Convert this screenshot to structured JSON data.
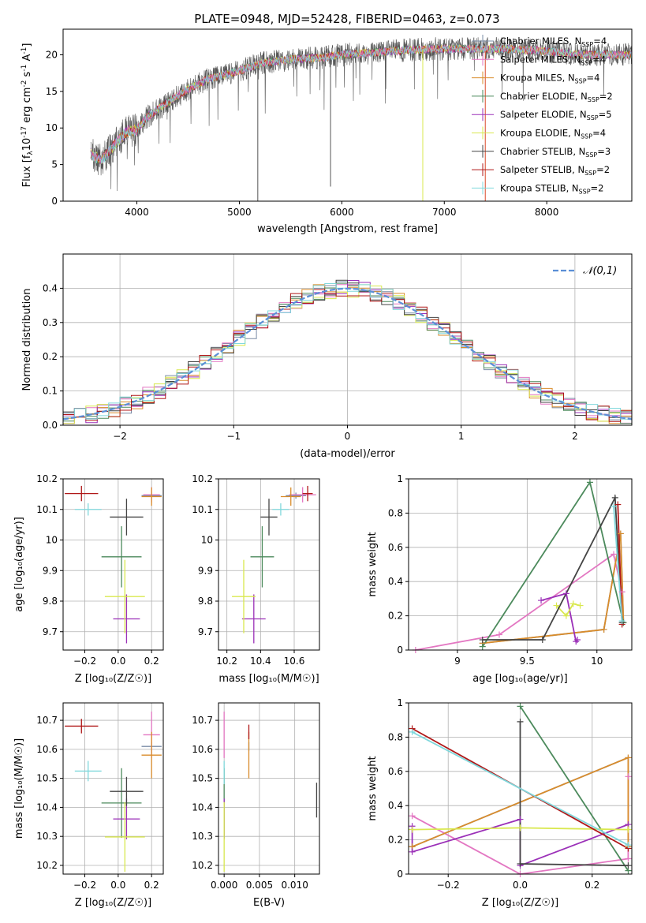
{
  "figure_title": "PLATE=0948, MJD=52428, FIBERID=0463, z=0.073",
  "series": [
    {
      "name": "Chabrier MILES, N",
      "sub": "SSP",
      "n": "=4",
      "color": "#7a8ca6"
    },
    {
      "name": "Salpeter MILES, N",
      "sub": "SSP",
      "n": "=4",
      "color": "#e377c2"
    },
    {
      "name": "Kroupa MILES, N",
      "sub": "SSP",
      "n": "=4",
      "color": "#d98c2b"
    },
    {
      "name": "Chabrier ELODIE, N",
      "sub": "SSP",
      "n": "=2",
      "color": "#4c8a5c"
    },
    {
      "name": "Salpeter ELODIE, N",
      "sub": "SSP",
      "n": "=5",
      "color": "#9b30b8"
    },
    {
      "name": "Kroupa ELODIE, N",
      "sub": "SSP",
      "n": "=4",
      "color": "#d9e84f"
    },
    {
      "name": "Chabrier STELIB, N",
      "sub": "SSP",
      "n": "=3",
      "color": "#444444"
    },
    {
      "name": "Salpeter STELIB, N",
      "sub": "SSP",
      "n": "=2",
      "color": "#b01818"
    },
    {
      "name": "Kroupa STELIB, N",
      "sub": "SSP",
      "n": "=2",
      "color": "#80d8dc"
    }
  ],
  "chart_data": [
    {
      "type": "line",
      "id": "spectrum",
      "xlabel": "wavelength [Angstrom, rest frame]",
      "ylabel_pre": "Flux [f",
      "ylabel_mid": "10",
      "ylabel_exp": "-17",
      "ylabel_post": " erg cm",
      "ylabel_exp2": "-2",
      "ylabel_post2": " s",
      "ylabel_exp3": "-1",
      "ylabel_post3": " A",
      "ylabel_exp4": "-1",
      "ylabel_end": "]",
      "xlim": [
        3280,
        8830
      ],
      "ylim": [
        0,
        23.5
      ],
      "xticks": [
        4000,
        5000,
        6000,
        7000,
        8000
      ],
      "yticks": [
        0,
        5,
        10,
        15,
        20
      ],
      "x_sample": [
        3550,
        3650,
        3800,
        3900,
        4000,
        4100,
        4300,
        4500,
        4700,
        5000,
        5200,
        5500,
        5800,
        6000,
        6300,
        6600,
        6900,
        7200,
        7400,
        7600,
        7900,
        8200,
        8400,
        8830
      ],
      "y_sample": [
        6.5,
        5.5,
        8.0,
        9.5,
        9.8,
        11.5,
        13.5,
        15.3,
        16.7,
        17.8,
        18.8,
        19.4,
        19.6,
        20.0,
        20.3,
        20.6,
        20.8,
        20.8,
        20.8,
        20.8,
        20.6,
        20.2,
        20.0,
        20.0
      ]
    },
    {
      "type": "bar",
      "id": "residuals",
      "xlabel": "(data-model)/error",
      "ylabel": "Normed distribution",
      "xlim": [
        -2.5,
        2.5
      ],
      "ylim": [
        0,
        0.5
      ],
      "xticks": [
        -2,
        -1,
        0,
        1,
        2
      ],
      "xtick_labels": [
        "−2",
        "−1",
        "0",
        "1",
        "2"
      ],
      "yticks": [
        0.0,
        0.1,
        0.2,
        0.3,
        0.4
      ],
      "ytick_labels": [
        "0.0",
        "0.1",
        "0.2",
        "0.3",
        "0.4"
      ],
      "bin_width": 0.1,
      "reference": {
        "name": "𝒩(0,1)",
        "mean": 0,
        "sigma": 1
      },
      "legend": "upper right"
    },
    {
      "type": "scatter",
      "id": "age-vs-Z",
      "xlabel": "Z [log₁₀(Z/Z☉)]",
      "ylabel": "age  [log₁₀(age/yr)]",
      "xlim": [
        -0.33,
        0.27
      ],
      "ylim": [
        9.64,
        10.2
      ],
      "xticks": [
        -0.2,
        0.0,
        0.2
      ],
      "xtick_labels": [
        "−0.2",
        "0.0",
        "0.2"
      ],
      "yticks": [
        9.7,
        9.8,
        9.9,
        10.0,
        10.1,
        10.2
      ],
      "points": [
        {
          "series": 0,
          "x": 0.2,
          "y": 10.145,
          "xerr": 0.06,
          "yerr": 0.01
        },
        {
          "series": 1,
          "x": 0.2,
          "y": 10.148,
          "xerr": 0.05,
          "yerr": 0.025
        },
        {
          "series": 2,
          "x": 0.2,
          "y": 10.142,
          "xerr": 0.06,
          "yerr": 0.03
        },
        {
          "series": 3,
          "x": 0.02,
          "y": 9.945,
          "xerr": 0.12,
          "yerr": 0.1
        },
        {
          "series": 4,
          "x": 0.05,
          "y": 9.742,
          "xerr": 0.08,
          "yerr": 0.08
        },
        {
          "series": 5,
          "x": 0.04,
          "y": 9.815,
          "xerr": 0.12,
          "yerr": 0.12
        },
        {
          "series": 6,
          "x": 0.05,
          "y": 10.075,
          "xerr": 0.1,
          "yerr": 0.06
        },
        {
          "series": 7,
          "x": -0.22,
          "y": 10.152,
          "xerr": 0.1,
          "yerr": 0.025
        },
        {
          "series": 8,
          "x": -0.18,
          "y": 10.1,
          "xerr": 0.08,
          "yerr": 0.02
        }
      ]
    },
    {
      "type": "scatter",
      "id": "age-vs-mass",
      "xlabel": "mass [log₁₀(M/M☉)]",
      "ylabel": "",
      "xlim": [
        10.15,
        10.75
      ],
      "ylim": [
        9.64,
        10.2
      ],
      "xticks": [
        10.2,
        10.4,
        10.6
      ],
      "yticks": [
        9.7,
        9.8,
        9.9,
        10.0,
        10.1,
        10.2
      ],
      "points": [
        {
          "series": 0,
          "x": 10.61,
          "y": 10.145,
          "xerr": 0.06,
          "yerr": 0.01
        },
        {
          "series": 1,
          "x": 10.65,
          "y": 10.148,
          "xerr": 0.08,
          "yerr": 0.025
        },
        {
          "series": 2,
          "x": 10.58,
          "y": 10.142,
          "xerr": 0.06,
          "yerr": 0.03
        },
        {
          "series": 3,
          "x": 10.41,
          "y": 9.945,
          "xerr": 0.07,
          "yerr": 0.1
        },
        {
          "series": 4,
          "x": 10.36,
          "y": 9.742,
          "xerr": 0.07,
          "yerr": 0.08
        },
        {
          "series": 5,
          "x": 10.3,
          "y": 9.815,
          "xerr": 0.07,
          "yerr": 0.12
        },
        {
          "series": 6,
          "x": 10.45,
          "y": 10.075,
          "xerr": 0.05,
          "yerr": 0.06
        },
        {
          "series": 7,
          "x": 10.68,
          "y": 10.152,
          "xerr": 0.03,
          "yerr": 0.025
        },
        {
          "series": 8,
          "x": 10.52,
          "y": 10.1,
          "xerr": 0.05,
          "yerr": 0.02
        }
      ]
    },
    {
      "type": "line",
      "id": "weight-vs-age",
      "xlabel": "age  [log₁₀(age/yr)]",
      "ylabel": "mass weight",
      "xlim": [
        8.65,
        10.25
      ],
      "ylim": [
        0,
        1
      ],
      "xticks": [
        9.0,
        9.5,
        10.0
      ],
      "yticks": [
        0.0,
        0.2,
        0.4,
        0.6,
        0.8,
        1.0
      ],
      "lines": [
        {
          "series": 0,
          "x": [
            9.18,
            10.05,
            10.17,
            10.19
          ],
          "y": [
            0.04,
            0.12,
            0.68,
            0.16
          ]
        },
        {
          "series": 1,
          "x": [
            8.7,
            9.3,
            10.12,
            10.18
          ],
          "y": [
            0.0,
            0.09,
            0.56,
            0.34
          ]
        },
        {
          "series": 2,
          "x": [
            9.18,
            10.05,
            10.17,
            10.19
          ],
          "y": [
            0.04,
            0.12,
            0.68,
            0.16
          ]
        },
        {
          "series": 3,
          "x": [
            9.18,
            9.95,
            10.19
          ],
          "y": [
            0.02,
            0.98,
            0.16
          ]
        },
        {
          "series": 4,
          "x": [
            9.6,
            9.78,
            9.85,
            9.86
          ],
          "y": [
            0.29,
            0.33,
            0.05,
            0.06
          ]
        },
        {
          "series": 5,
          "x": [
            9.71,
            9.78,
            9.83,
            9.88
          ],
          "y": [
            0.26,
            0.2,
            0.27,
            0.26
          ]
        },
        {
          "series": 6,
          "x": [
            9.18,
            9.61,
            10.13,
            10.18
          ],
          "y": [
            0.06,
            0.06,
            0.89,
            0.16
          ]
        },
        {
          "series": 7,
          "x": [
            10.15,
            10.18
          ],
          "y": [
            0.85,
            0.15
          ]
        },
        {
          "series": 8,
          "x": [
            10.12,
            10.18
          ],
          "y": [
            0.84,
            0.17
          ]
        }
      ]
    },
    {
      "type": "scatter",
      "id": "mass-vs-Z",
      "xlabel": "Z [log₁₀(Z/Z☉)]",
      "ylabel": "mass [log₁₀(M/M☉)]",
      "xlim": [
        -0.33,
        0.27
      ],
      "ylim": [
        10.17,
        10.76
      ],
      "xticks": [
        -0.2,
        0.0,
        0.2
      ],
      "xtick_labels": [
        "−0.2",
        "0.0",
        "0.2"
      ],
      "yticks": [
        10.2,
        10.3,
        10.4,
        10.5,
        10.6,
        10.7
      ],
      "points": [
        {
          "series": 0,
          "x": 0.2,
          "y": 10.61,
          "xerr": 0.06,
          "yerr": 0.015
        },
        {
          "series": 1,
          "x": 0.2,
          "y": 10.65,
          "xerr": 0.05,
          "yerr": 0.08
        },
        {
          "series": 2,
          "x": 0.2,
          "y": 10.58,
          "xerr": 0.06,
          "yerr": 0.08
        },
        {
          "series": 3,
          "x": 0.02,
          "y": 10.415,
          "xerr": 0.12,
          "yerr": 0.12
        },
        {
          "series": 4,
          "x": 0.05,
          "y": 10.36,
          "xerr": 0.08,
          "yerr": 0.07
        },
        {
          "series": 5,
          "x": 0.04,
          "y": 10.298,
          "xerr": 0.12,
          "yerr": 0.12
        },
        {
          "series": 6,
          "x": 0.05,
          "y": 10.455,
          "xerr": 0.1,
          "yerr": 0.05
        },
        {
          "series": 7,
          "x": -0.22,
          "y": 10.68,
          "xerr": 0.1,
          "yerr": 0.025
        },
        {
          "series": 8,
          "x": -0.18,
          "y": 10.525,
          "xerr": 0.08,
          "yerr": 0.035
        }
      ]
    },
    {
      "type": "scatter",
      "id": "mass-vs-ebv",
      "xlabel": "E(B-V)",
      "ylabel": "",
      "xlim": [
        -0.0008,
        0.0135
      ],
      "ylim": [
        10.17,
        10.76
      ],
      "xticks": [
        0.0,
        0.005,
        0.01
      ],
      "xtick_labels": [
        "0.000",
        "0.005",
        "0.010"
      ],
      "yticks": [
        10.2,
        10.3,
        10.4,
        10.5,
        10.6,
        10.7
      ],
      "points": [
        {
          "series": 0,
          "x": 0.0035,
          "y": 10.61,
          "xerr": 0,
          "yerr": 0.015
        },
        {
          "series": 1,
          "x": 0.0,
          "y": 10.65,
          "xerr": 0,
          "yerr": 0.08
        },
        {
          "series": 2,
          "x": 0.0035,
          "y": 10.58,
          "xerr": 0,
          "yerr": 0.08
        },
        {
          "series": 3,
          "x": 0.0,
          "y": 10.415,
          "xerr": 0,
          "yerr": 0.12
        },
        {
          "series": 4,
          "x": 0.0,
          "y": 10.36,
          "xerr": 0,
          "yerr": 0.07
        },
        {
          "series": 5,
          "x": 0.0,
          "y": 10.298,
          "xerr": 0,
          "yerr": 0.12
        },
        {
          "series": 6,
          "x": 0.0131,
          "y": 10.425,
          "xerr": 0,
          "yerr": 0.06
        },
        {
          "series": 7,
          "x": 0.0035,
          "y": 10.66,
          "xerr": 0,
          "yerr": 0.025
        },
        {
          "series": 8,
          "x": 0.0,
          "y": 10.52,
          "xerr": 0,
          "yerr": 0.04
        }
      ]
    },
    {
      "type": "line",
      "id": "weight-vs-Z",
      "xlabel": "Z [log₁₀(Z/Z☉)]",
      "ylabel": "mass weight",
      "xlim": [
        -0.31,
        0.31
      ],
      "ylim": [
        0,
        1
      ],
      "xticks": [
        -0.2,
        0.0,
        0.2
      ],
      "xtick_labels": [
        "−0.2",
        "0.0",
        "0.2"
      ],
      "yticks": [
        0.0,
        0.2,
        0.4,
        0.6,
        0.8,
        1.0
      ],
      "lines": [
        {
          "series": 0,
          "x": [
            -0.3,
            0.3,
            0.3
          ],
          "y": [
            0.16,
            0.68,
            0.16
          ]
        },
        {
          "series": 1,
          "x": [
            -0.3,
            0.0,
            0.3,
            0.3
          ],
          "y": [
            0.34,
            0.0,
            0.09,
            0.57
          ]
        },
        {
          "series": 2,
          "x": [
            -0.3,
            0.3,
            0.3
          ],
          "y": [
            0.16,
            0.68,
            0.16
          ]
        },
        {
          "series": 3,
          "x": [
            0.0,
            0.3
          ],
          "y": [
            0.98,
            0.02
          ]
        },
        {
          "series": 4,
          "x": [
            -0.3,
            -0.3,
            0.0,
            0.0,
            0.3
          ],
          "y": [
            0.28,
            0.13,
            0.32,
            0.05,
            0.29
          ]
        },
        {
          "series": 5,
          "x": [
            -0.3,
            0.0,
            0.3
          ],
          "y": [
            0.26,
            0.27,
            0.26
          ]
        },
        {
          "series": 6,
          "x": [
            0.0,
            0.0,
            0.3
          ],
          "y": [
            0.89,
            0.06,
            0.05
          ]
        },
        {
          "series": 7,
          "x": [
            -0.3,
            0.3
          ],
          "y": [
            0.85,
            0.15
          ]
        },
        {
          "series": 8,
          "x": [
            -0.3,
            0.3
          ],
          "y": [
            0.83,
            0.17
          ]
        }
      ]
    }
  ]
}
